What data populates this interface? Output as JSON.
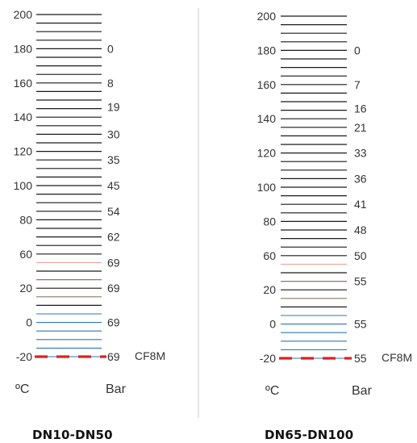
{
  "divider_color": "#cfcfcf",
  "colors": {
    "black_line": "#1a1a1a",
    "brown_line": "#8a7a6a",
    "pink_line": "#f2a39a",
    "blue_line": "#2f76b8",
    "red_dash": "#e02020",
    "text": "#333333"
  },
  "panels": [
    {
      "caption": "DN10-DN50",
      "temp_unit": "ºC",
      "pressure_unit": "Bar",
      "material_label": "CF8M",
      "temp_ticks": [
        {
          "value": "200",
          "t": 200
        },
        {
          "value": "180",
          "t": 180
        },
        {
          "value": "160",
          "t": 160
        },
        {
          "value": "140",
          "t": 140
        },
        {
          "value": "120",
          "t": 120
        },
        {
          "value": "100",
          "t": 100
        },
        {
          "value": "80",
          "t": 80
        },
        {
          "value": "60",
          "t": 60
        },
        {
          "value": "20",
          "t": 40
        },
        {
          "value": "0",
          "t": 20
        },
        {
          "value": "-20",
          "t": 0
        }
      ],
      "pressure_labels": [
        {
          "value": "0",
          "t": 180
        },
        {
          "value": "8",
          "t": 160
        },
        {
          "value": "19",
          "t": 146
        },
        {
          "value": "30",
          "t": 130
        },
        {
          "value": "35",
          "t": 115
        },
        {
          "value": "45",
          "t": 100
        },
        {
          "value": "54",
          "t": 85
        },
        {
          "value": "62",
          "t": 70
        },
        {
          "value": "69",
          "t": 55
        },
        {
          "value": "69",
          "t": 40
        },
        {
          "value": "69",
          "t": 20
        },
        {
          "value": "69",
          "t": 0
        }
      ],
      "pink_line_t": 55
    },
    {
      "caption": "DN65-DN100",
      "temp_unit": "ºC",
      "pressure_unit": "Bar",
      "material_label": "CF8M",
      "temp_ticks": [
        {
          "value": "200",
          "t": 200
        },
        {
          "value": "180",
          "t": 180
        },
        {
          "value": "160",
          "t": 160
        },
        {
          "value": "140",
          "t": 140
        },
        {
          "value": "120",
          "t": 120
        },
        {
          "value": "100",
          "t": 100
        },
        {
          "value": "80",
          "t": 80
        },
        {
          "value": "60",
          "t": 60
        },
        {
          "value": "20",
          "t": 40
        },
        {
          "value": "0",
          "t": 20
        },
        {
          "value": "-20",
          "t": 0
        }
      ],
      "pressure_labels": [
        {
          "value": "0",
          "t": 180
        },
        {
          "value": "7",
          "t": 160
        },
        {
          "value": "16",
          "t": 146
        },
        {
          "value": "21",
          "t": 135
        },
        {
          "value": "33",
          "t": 120
        },
        {
          "value": "36",
          "t": 105
        },
        {
          "value": "41",
          "t": 90
        },
        {
          "value": "48",
          "t": 75
        },
        {
          "value": "50",
          "t": 60
        },
        {
          "value": "55",
          "t": 45
        },
        {
          "value": "55",
          "t": 20
        },
        {
          "value": "55",
          "t": 0
        }
      ],
      "pink_line_t": 55
    }
  ]
}
